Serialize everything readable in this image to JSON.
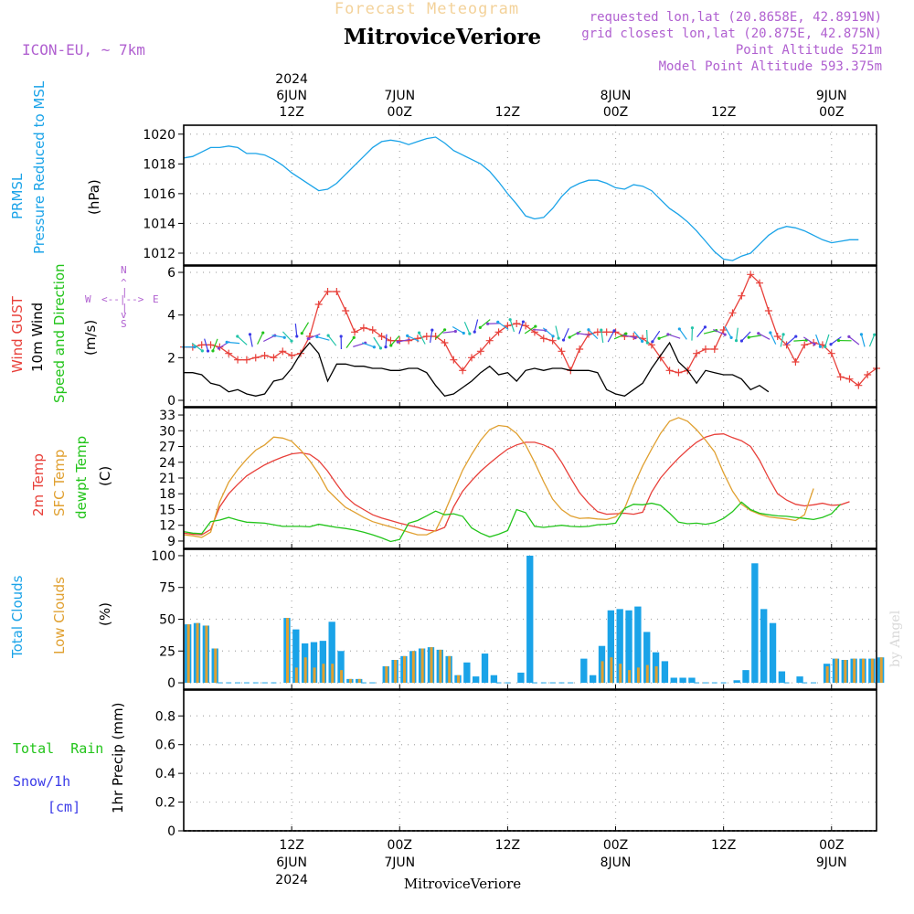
{
  "header": {
    "title_top": "Forecast Meteogram",
    "station": "MitroviceVeriore",
    "model": "ICON-EU, ~ 7km",
    "info": [
      "requested lon,lat (20.8658E, 42.8919N)",
      "grid closest lon,lat (20.875E, 42.875N)",
      "Point Altitude 521m",
      "Model Point Altitude 593.375m"
    ],
    "watermark": "by Angel",
    "footer_station": "MitroviceVeriore"
  },
  "time_axis": {
    "top_labels": [
      {
        "t": 12,
        "lines": [
          "2024",
          "6JUN",
          "12Z"
        ]
      },
      {
        "t": 24,
        "lines": [
          "7JUN",
          "00Z"
        ]
      },
      {
        "t": 36,
        "lines": [
          "12Z"
        ]
      },
      {
        "t": 48,
        "lines": [
          "8JUN",
          "00Z"
        ]
      },
      {
        "t": 60,
        "lines": [
          "12Z"
        ]
      },
      {
        "t": 72,
        "lines": [
          "9JUN",
          "00Z"
        ]
      }
    ],
    "bottom_labels": [
      {
        "t": 12,
        "lines": [
          "12Z",
          "6JUN",
          "2024"
        ]
      },
      {
        "t": 24,
        "lines": [
          "00Z",
          "7JUN"
        ]
      },
      {
        "t": 36,
        "lines": [
          "12Z"
        ]
      },
      {
        "t": 48,
        "lines": [
          "00Z",
          "8JUN"
        ]
      },
      {
        "t": 60,
        "lines": [
          "12Z"
        ]
      },
      {
        "t": 72,
        "lines": [
          "00Z",
          "9JUN"
        ]
      }
    ]
  },
  "panels": {
    "pressure": {
      "labels": [
        {
          "text": "PRMSL",
          "color": "#1aa3e8"
        },
        {
          "text": "Pressure Reduced to MSL",
          "color": "#1aa3e8"
        },
        {
          "text": "(hPa)",
          "color": "#000000"
        }
      ]
    },
    "wind": {
      "labels": [
        {
          "text": "Wind GUST",
          "color": "#e8403a"
        },
        {
          "text": "10m Wind",
          "color": "#000000"
        },
        {
          "text": "Speed and Direction",
          "color": "#22c41a"
        },
        {
          "text": "(m/s)",
          "color": "#000000"
        }
      ],
      "compass": {
        "n": "N",
        "s": "S",
        "w": "W",
        "e": "E"
      }
    },
    "temperature": {
      "labels": [
        {
          "text": "2m Temp",
          "color": "#e8403a"
        },
        {
          "text": "SFC Temp",
          "color": "#e0a030"
        },
        {
          "text": "dewpt Temp",
          "color": "#22c41a"
        },
        {
          "text": "(C)",
          "color": "#000000"
        }
      ]
    },
    "clouds": {
      "labels": [
        {
          "text": "Total Clouds",
          "color": "#1aa3e8"
        },
        {
          "text": "Low Clouds",
          "color": "#e0a030"
        },
        {
          "text": "(%)",
          "color": "#000000"
        }
      ]
    },
    "precip": {
      "labels_left": [
        {
          "text": "Total  Rain",
          "color": "#22c41a"
        },
        {
          "text": "Snow/1h",
          "color": "#3a3ae8"
        },
        {
          "text": "[cm]",
          "color": "#3a3ae8"
        }
      ],
      "ylabel": "1hr Precip (mm)"
    }
  },
  "chart_data": [
    {
      "type": "line",
      "name": "pressure",
      "x_start_hour": 0,
      "x_step_hours": 1,
      "xlim_hours": [
        0,
        77
      ],
      "ylim": [
        1011.2,
        1020.6
      ],
      "yticks": [
        1012,
        1014,
        1016,
        1018,
        1020
      ],
      "series": [
        {
          "color": "#1aa3e8",
          "values": [
            1018.4,
            1018.5,
            1018.8,
            1019.1,
            1019.1,
            1019.2,
            1019.1,
            1018.7,
            1018.7,
            1018.6,
            1018.3,
            1017.9,
            1017.4,
            1017.0,
            1016.6,
            1016.2,
            1016.3,
            1016.7,
            1017.3,
            1017.9,
            1018.5,
            1019.1,
            1019.5,
            1019.6,
            1019.5,
            1019.3,
            1019.5,
            1019.7,
            1019.8,
            1019.4,
            1018.9,
            1018.6,
            1018.3,
            1018.0,
            1017.5,
            1016.8,
            1016.0,
            1015.3,
            1014.5,
            1014.3,
            1014.4,
            1015.0,
            1015.8,
            1016.4,
            1016.7,
            1016.9,
            1016.9,
            1016.7,
            1016.4,
            1016.3,
            1016.6,
            1016.5,
            1016.2,
            1015.6,
            1015.0,
            1014.6,
            1014.1,
            1013.5,
            1012.8,
            1012.1,
            1011.6,
            1011.5,
            1011.8,
            1012.0,
            1012.6,
            1013.2,
            1013.6,
            1013.8,
            1013.7,
            1013.5,
            1013.2,
            1012.9,
            1012.7,
            1012.8,
            1012.9,
            1012.9
          ]
        }
      ]
    },
    {
      "type": "line",
      "name": "wind",
      "x_start_hour": 0,
      "x_step_hours": 1,
      "xlim_hours": [
        0,
        77
      ],
      "ylim": [
        -0.3,
        6.3
      ],
      "yticks": [
        0,
        2,
        4,
        6
      ],
      "series": [
        {
          "color": "#e8403a",
          "marker": "+",
          "values": [
            2.5,
            2.5,
            2.6,
            2.6,
            2.5,
            2.2,
            1.9,
            1.9,
            2.0,
            2.1,
            2.0,
            2.3,
            2.1,
            2.2,
            3.0,
            4.5,
            5.1,
            5.1,
            4.2,
            3.2,
            3.4,
            3.3,
            3.0,
            2.8,
            2.8,
            2.8,
            2.9,
            3.0,
            3.0,
            2.7,
            1.9,
            1.4,
            2.0,
            2.3,
            2.8,
            3.2,
            3.5,
            3.6,
            3.5,
            3.2,
            2.9,
            2.8,
            2.3,
            1.4,
            2.4,
            3.1,
            3.2,
            3.2,
            3.2,
            3.0,
            3.0,
            2.9,
            2.6,
            2.0,
            1.4,
            1.3,
            1.4,
            2.2,
            2.4,
            2.4,
            3.3,
            4.1,
            4.9,
            5.9,
            5.5,
            4.2,
            3.0,
            2.6,
            1.8,
            2.6,
            2.7,
            2.6,
            2.2,
            1.1,
            1.0,
            0.7,
            1.2,
            1.5
          ]
        },
        {
          "color": "#000000",
          "values": [
            1.3,
            1.3,
            1.2,
            0.8,
            0.7,
            0.4,
            0.5,
            0.3,
            0.2,
            0.3,
            0.9,
            1.0,
            1.5,
            2.2,
            2.7,
            2.2,
            0.9,
            1.7,
            1.7,
            1.6,
            1.6,
            1.5,
            1.5,
            1.4,
            1.4,
            1.5,
            1.5,
            1.3,
            0.7,
            0.2,
            0.3,
            0.6,
            0.9,
            1.3,
            1.6,
            1.2,
            1.3,
            0.9,
            1.4,
            1.5,
            1.4,
            1.5,
            1.5,
            1.4,
            1.4,
            1.4,
            1.3,
            0.5,
            0.3,
            0.2,
            0.5,
            0.8,
            1.5,
            2.1,
            2.7,
            1.8,
            1.4,
            0.8,
            1.4,
            1.3,
            1.2,
            1.2,
            1.0,
            0.5,
            0.7,
            0.4
          ]
        },
        {
          "name": "direction_arrows",
          "values": [
            2.5,
            2.5,
            2.6,
            2.6,
            2.6,
            2.7,
            2.8,
            2.8,
            2.9,
            2.9,
            3.0,
            3.0,
            3.3,
            3.4,
            3.0,
            2.9,
            2.8,
            2.7,
            2.7,
            2.6,
            2.6,
            2.7,
            2.8,
            2.8,
            2.8,
            2.9,
            2.9,
            3.0,
            3.1,
            3.2,
            3.3,
            3.4,
            3.5,
            3.6,
            3.6,
            3.5,
            3.5,
            3.4,
            3.3,
            3.3,
            3.2,
            3.2,
            3.1,
            3.1,
            3.1,
            3.1,
            3.0,
            3.0,
            3.0,
            3.0,
            3.0,
            3.0,
            3.0,
            3.0,
            3.0,
            3.1,
            3.1,
            3.2,
            3.2,
            3.2,
            3.2,
            3.1,
            3.0,
            3.0,
            3.0,
            2.9,
            2.8,
            2.8,
            2.8,
            2.8,
            2.8,
            2.8,
            2.8,
            2.8,
            2.8,
            2.8,
            2.8
          ]
        }
      ]
    },
    {
      "type": "line",
      "name": "temperature",
      "x_start_hour": 0,
      "x_step_hours": 1,
      "xlim_hours": [
        0,
        77
      ],
      "ylim": [
        7.6,
        34.4
      ],
      "yticks": [
        9,
        12,
        15,
        18,
        21,
        24,
        27,
        30,
        33
      ],
      "series": [
        {
          "color": "#e8403a",
          "values": [
            10.5,
            10.3,
            10.2,
            11.2,
            15.5,
            18.0,
            19.8,
            21.4,
            22.5,
            23.5,
            24.3,
            25.0,
            25.6,
            25.8,
            25.5,
            24.3,
            22.3,
            19.8,
            17.5,
            16.0,
            15.0,
            14.0,
            13.4,
            12.9,
            12.4,
            12.0,
            11.6,
            11.1,
            10.9,
            11.6,
            15.5,
            18.5,
            20.5,
            22.3,
            23.8,
            25.2,
            26.5,
            27.3,
            27.8,
            27.8,
            27.3,
            26.5,
            24.0,
            21.0,
            18.2,
            16.2,
            14.6,
            14.1,
            14.2,
            14.3,
            14.1,
            14.5,
            18.3,
            21.0,
            23.0,
            24.8,
            26.4,
            27.8,
            28.8,
            29.3,
            29.4,
            28.7,
            28.1,
            27.0,
            24.4,
            21.0,
            18.0,
            16.8,
            16.0,
            15.7,
            15.9,
            16.2,
            15.8,
            15.9,
            16.5
          ]
        },
        {
          "color": "#e0a030",
          "values": [
            10.2,
            10.0,
            9.7,
            10.7,
            16.5,
            20.2,
            22.6,
            24.6,
            26.3,
            27.3,
            28.8,
            28.6,
            28.0,
            26.3,
            24.3,
            21.8,
            18.7,
            17.0,
            15.4,
            14.5,
            13.5,
            12.7,
            12.2,
            11.7,
            11.2,
            10.7,
            10.2,
            10.2,
            11.0,
            14.5,
            18.5,
            22.5,
            25.5,
            28.2,
            30.2,
            31.0,
            30.8,
            29.5,
            27.3,
            24.0,
            20.3,
            17.0,
            15.0,
            13.8,
            13.3,
            13.4,
            13.2,
            13.1,
            13.6,
            15.2,
            19.5,
            23.3,
            26.5,
            29.5,
            31.8,
            32.5,
            31.8,
            30.2,
            28.2,
            26.0,
            22.0,
            18.5,
            16.0,
            14.8,
            14.1,
            13.6,
            13.4,
            13.2,
            12.9,
            14.0,
            19.0
          ]
        },
        {
          "color": "#22c41a",
          "values": [
            10.8,
            10.5,
            10.4,
            12.7,
            13.0,
            13.5,
            13.0,
            12.6,
            12.5,
            12.4,
            12.1,
            11.8,
            11.8,
            11.8,
            11.7,
            12.2,
            11.9,
            11.6,
            11.4,
            11.1,
            10.7,
            10.2,
            9.6,
            8.9,
            9.3,
            12.4,
            12.9,
            13.8,
            14.7,
            14.0,
            14.2,
            13.7,
            11.5,
            10.5,
            9.8,
            10.3,
            11.0,
            15.0,
            14.4,
            11.8,
            11.6,
            11.8,
            12.0,
            11.8,
            11.7,
            11.8,
            12.1,
            12.2,
            12.4,
            15.2,
            16.0,
            15.9,
            16.2,
            15.8,
            14.3,
            12.6,
            12.3,
            12.4,
            12.2,
            12.5,
            13.3,
            14.6,
            16.4,
            15.0,
            14.3,
            14.0,
            13.8,
            13.7,
            13.5,
            13.3,
            13.1,
            13.5,
            14.2,
            16.0
          ]
        }
      ]
    },
    {
      "type": "bar",
      "name": "clouds",
      "x_start_hour": 0,
      "x_step_hours": 1,
      "xlim_hours": [
        0,
        77
      ],
      "ylim": [
        -5,
        105
      ],
      "yticks": [
        0,
        25,
        50,
        75,
        100
      ],
      "series": [
        {
          "name": "Total Clouds",
          "color": "#1aa3e8",
          "values": [
            46,
            47,
            45,
            27,
            0,
            0,
            0,
            0,
            0,
            0,
            0,
            51,
            42,
            31,
            32,
            33,
            48,
            25,
            3,
            3,
            0,
            0,
            13,
            18,
            21,
            25,
            27,
            28,
            26,
            21,
            6,
            16,
            5,
            23,
            6,
            0,
            0,
            8,
            100,
            0,
            0,
            0,
            0,
            0,
            19,
            6,
            29,
            57,
            58,
            57,
            60,
            40,
            24,
            17,
            4,
            4,
            4,
            0,
            0,
            0,
            0,
            2,
            10,
            94,
            58,
            47,
            9,
            0,
            5,
            0,
            0,
            15,
            19,
            18,
            19,
            19,
            19,
            20
          ]
        },
        {
          "name": "Low Clouds",
          "color": "#e0a030",
          "values": [
            46,
            47,
            45,
            27,
            0,
            0,
            0,
            0,
            0,
            0,
            0,
            51,
            12,
            20,
            12,
            15,
            15,
            10,
            3,
            3,
            0,
            0,
            13,
            18,
            21,
            25,
            27,
            28,
            26,
            21,
            6,
            0,
            0,
            0,
            0,
            0,
            0,
            0,
            0,
            0,
            0,
            0,
            0,
            0,
            0,
            0,
            17,
            20,
            15,
            10,
            12,
            14,
            13,
            0,
            0,
            0,
            0,
            0,
            0,
            0,
            0,
            0,
            0,
            0,
            0,
            0,
            0,
            0,
            0,
            0,
            0,
            13,
            19,
            18,
            19,
            19,
            19,
            20
          ]
        }
      ]
    },
    {
      "type": "line",
      "name": "precip",
      "xlim_hours": [
        0,
        77
      ],
      "ylim": [
        0,
        0.98
      ],
      "yticks": [
        0,
        0.2,
        0.4,
        0.6,
        0.8
      ],
      "series": [
        {
          "name": "Total Rain",
          "color": "#22c41a",
          "values": []
        }
      ]
    }
  ]
}
